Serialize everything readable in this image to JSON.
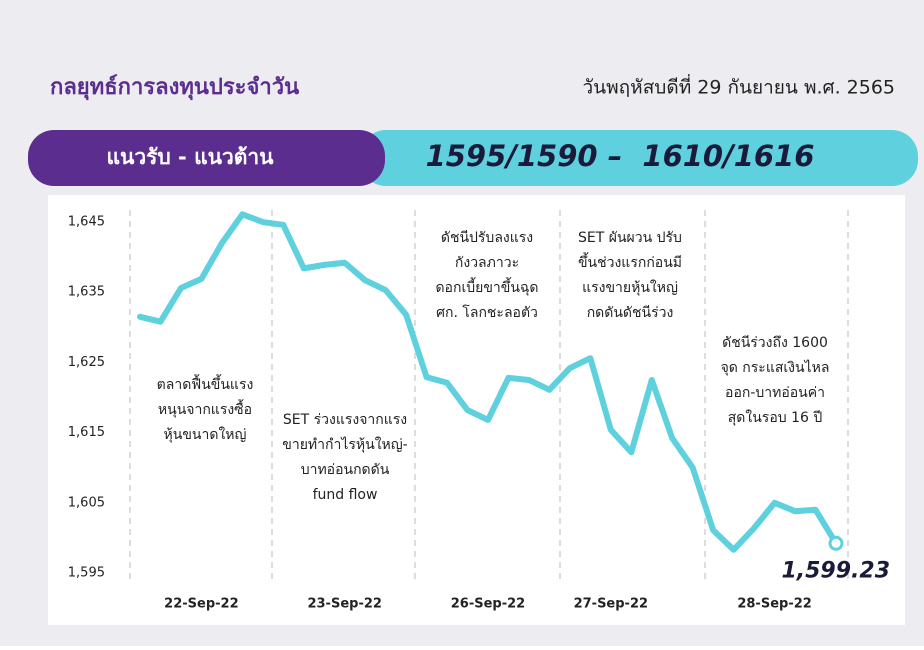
{
  "header": {
    "title": "กลยุทธ์การลงทุนประจำวัน",
    "date": "วันพฤหัสบดีที่ 29 กันยายน พ.ศ. 2565",
    "banner_label": "แนวรับ - แนวต้าน",
    "banner_value": "1595/1590 –  1610/1616"
  },
  "chart_data": {
    "type": "line",
    "color": "#5fd0de",
    "categories": [
      null,
      null,
      null,
      "22-Sep-22",
      null,
      null,
      null,
      null,
      null,
      null,
      "23-Sep-22",
      null,
      null,
      null,
      null,
      null,
      null,
      "26-Sep-22",
      null,
      null,
      null,
      null,
      null,
      "27-Sep-22",
      null,
      null,
      null,
      null,
      null,
      null,
      null,
      "28-Sep-22",
      null,
      null,
      null
    ],
    "values": [
      1631.5,
      1630.8,
      1635.6,
      1636.9,
      1642,
      1646.1,
      1645,
      1644.6,
      1638.4,
      1638.9,
      1639.2,
      1636.7,
      1635.3,
      1631.8,
      1622.9,
      1622.1,
      1618.2,
      1616.8,
      1622.8,
      1622.5,
      1621.1,
      1624.2,
      1625.6,
      1615.4,
      1612.2,
      1622.5,
      1614.2,
      1610,
      1601.1,
      1598.3,
      1601.4,
      1605,
      1603.8,
      1604,
      1599.23
    ],
    "value_labels": [
      null,
      null,
      null,
      null,
      null,
      null,
      null,
      null,
      null,
      null,
      null,
      null,
      null,
      null,
      null,
      null,
      null,
      null,
      null,
      null,
      null,
      null,
      null,
      null,
      null,
      null,
      null,
      null,
      null,
      null,
      null,
      null,
      null,
      null,
      "1,599.23"
    ],
    "ylim": [
      1593,
      1648
    ],
    "yticks": [
      {
        "value": 1595,
        "label": "1,595"
      },
      {
        "value": 1605,
        "label": "1,605"
      },
      {
        "value": 1615,
        "label": "1,615"
      },
      {
        "value": 1625,
        "label": "1,625"
      },
      {
        "value": 1635,
        "label": "1,635"
      },
      {
        "value": 1645,
        "label": "1,645"
      }
    ],
    "annotations": [
      [
        "ตลาดฟื้นขึ้นแรง",
        "หนุนจากแรงซื้อ",
        "หุ้นขนาดใหญ่"
      ],
      [
        "SET ร่วงแรงจากแรง",
        "ขายทำกำไรหุ้นใหญ่-",
        "บาทอ่อนกดดัน",
        "fund flow"
      ],
      [
        "ดัชนีปรับลงแรง",
        "กังวลภาวะ",
        "ดอกเบี้ยขาขึ้นฉุด",
        "ศก. โลกชะลอตัว"
      ],
      [
        "SET ผันผวน ปรับ",
        "ขึ้นช่วงแรกก่อนมี",
        "แรงขายหุ้นใหญ่",
        "กดดันดัชนีร่วง"
      ],
      [
        "ดัชนีร่วงถึง 1600",
        "จุด กระแสเงินไหล",
        "ออก-บาทอ่อนค่า",
        "สุดในรอบ 16 ปี"
      ]
    ]
  }
}
